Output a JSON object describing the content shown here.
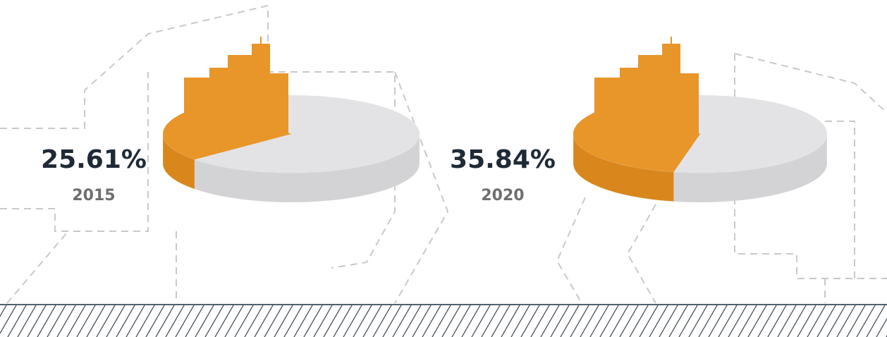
{
  "chart_data": [
    {
      "type": "pie",
      "categories": [
        "2015"
      ],
      "values": [
        25.61
      ],
      "value_labels": [
        "25.61%"
      ],
      "color": "#e8952a"
    },
    {
      "type": "pie",
      "categories": [
        "2020"
      ],
      "values": [
        35.84
      ],
      "value_labels": [
        "35.84%"
      ],
      "color": "#e8952a"
    }
  ]
}
